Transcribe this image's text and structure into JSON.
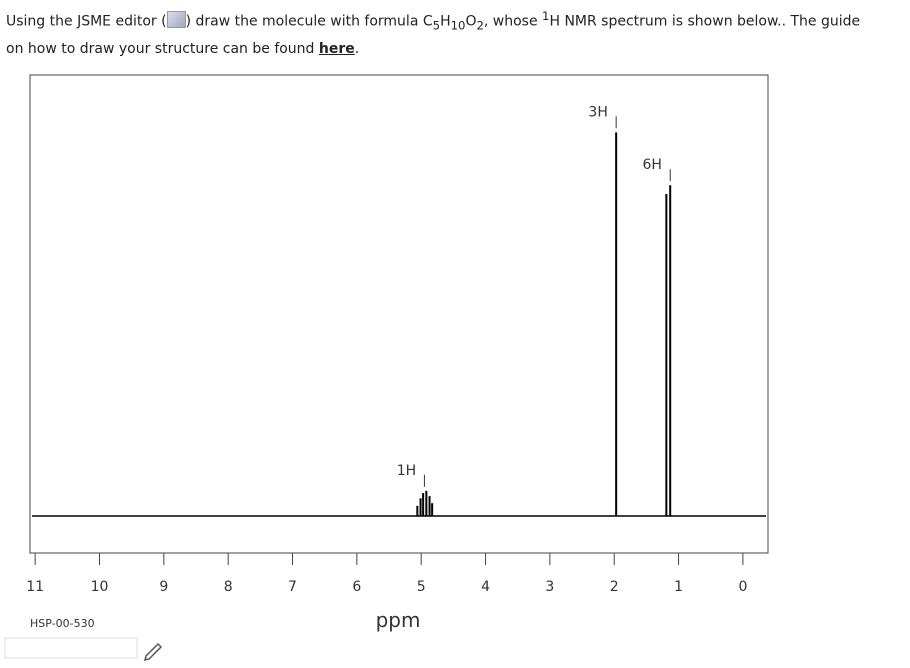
{
  "question_parts": [
    "Using the JSME editor (",
    ") draw the molecule with formula C",
    "5",
    "H",
    "10",
    "O",
    "2",
    ", whose ",
    "1",
    "H NMR spectrum is shown below.. The guide",
    "on how to draw your structure can be found ",
    "here",
    "."
  ],
  "chart_data": {
    "type": "spectrum",
    "xlabel": "ppm",
    "code": "HSP-00-530",
    "xlim": [
      11.08,
      -0.39
    ],
    "xticks": [
      11,
      10,
      9,
      8,
      7,
      6,
      5,
      4,
      3,
      2,
      1,
      0
    ],
    "ylim": [
      -8.4,
      100
    ],
    "x": [
      5.06,
      5.01,
      4.97,
      4.92,
      4.87,
      4.83,
      1.97,
      1.19,
      1.13
    ],
    "values": [
      2.3,
      4,
      5.2,
      5.7,
      4.5,
      2.9,
      87,
      73,
      75
    ],
    "color": "#000000",
    "annotations": [
      {
        "text": "1H",
        "x": 4.95
      },
      {
        "text": "3H",
        "x": 1.97
      },
      {
        "text": "6H",
        "x": 1.13
      }
    ]
  }
}
